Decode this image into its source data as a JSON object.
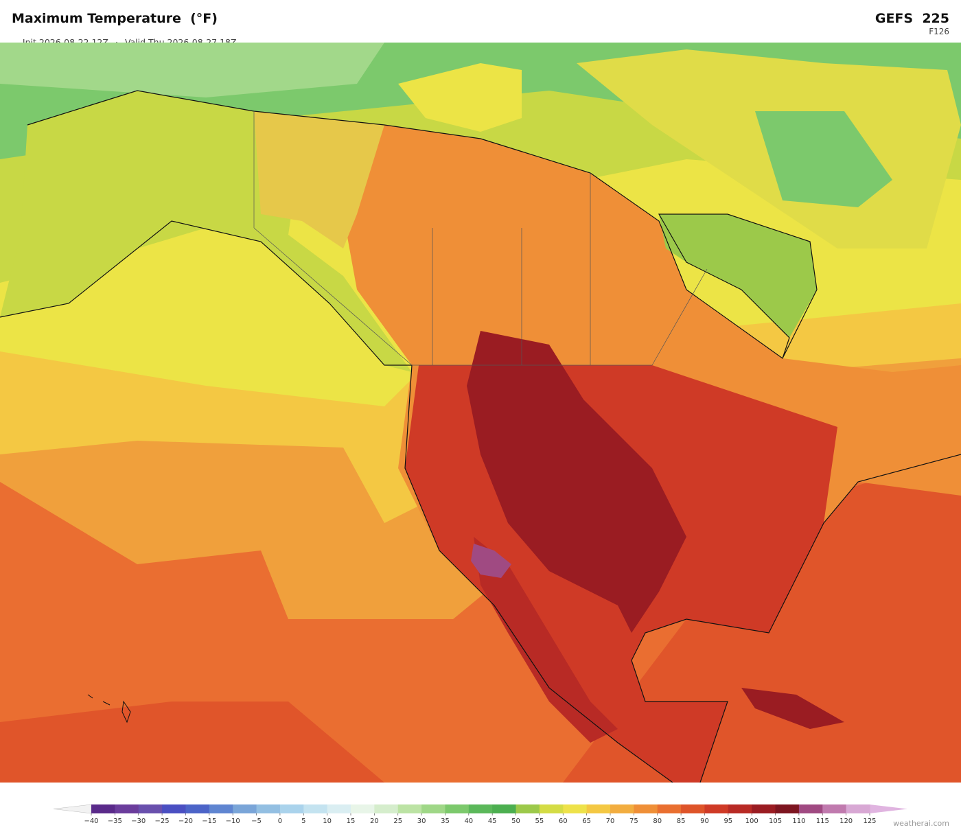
{
  "header": {
    "title": "Maximum Temperature  (°F)",
    "init": "Init 2026-08-22 12Z",
    "separator": "·",
    "valid": "Valid Thu 2026-08-27 18Z",
    "model": "GEFS  225",
    "forecast_hour": "F126"
  },
  "colorbar": {
    "ticks": [
      {
        "value": -40,
        "label": "−40"
      },
      {
        "value": -35,
        "label": "−35"
      },
      {
        "value": -30,
        "label": "−30"
      },
      {
        "value": -25,
        "label": "−25"
      },
      {
        "value": -20,
        "label": "−20"
      },
      {
        "value": -15,
        "label": "−15"
      },
      {
        "value": -10,
        "label": "−10"
      },
      {
        "value": -5,
        "label": "−5"
      },
      0,
      5,
      10,
      15,
      20,
      25,
      30,
      35,
      40,
      45,
      50,
      55,
      60,
      65,
      70,
      75,
      80,
      85,
      90,
      95,
      100,
      105,
      110,
      115,
      120,
      125
    ],
    "colors": [
      "#5a2a8a",
      "#6b3d9c",
      "#6950ad",
      "#4a4fc2",
      "#4c64c8",
      "#5f85d1",
      "#7aa5d8",
      "#93bfe2",
      "#aad3ec",
      "#c4e3f0",
      "#daeef2",
      "#e8f5e8",
      "#d5edcc",
      "#bce3a4",
      "#9fd787",
      "#7cc96c",
      "#5bb85a",
      "#4caf50",
      "#9cc94a",
      "#d4dc45",
      "#eee24a",
      "#f4c843",
      "#f2ad3f",
      "#ef8f37",
      "#e96f30",
      "#de5429",
      "#cf3a26",
      "#b82a25",
      "#9a1c22",
      "#7d1520",
      "#a04a82",
      "#c07aae",
      "#d8a8d4"
    ],
    "under_color": "#f2f2f2",
    "over_color": "#e0b4e0"
  },
  "watermark": "weatherai.com"
}
